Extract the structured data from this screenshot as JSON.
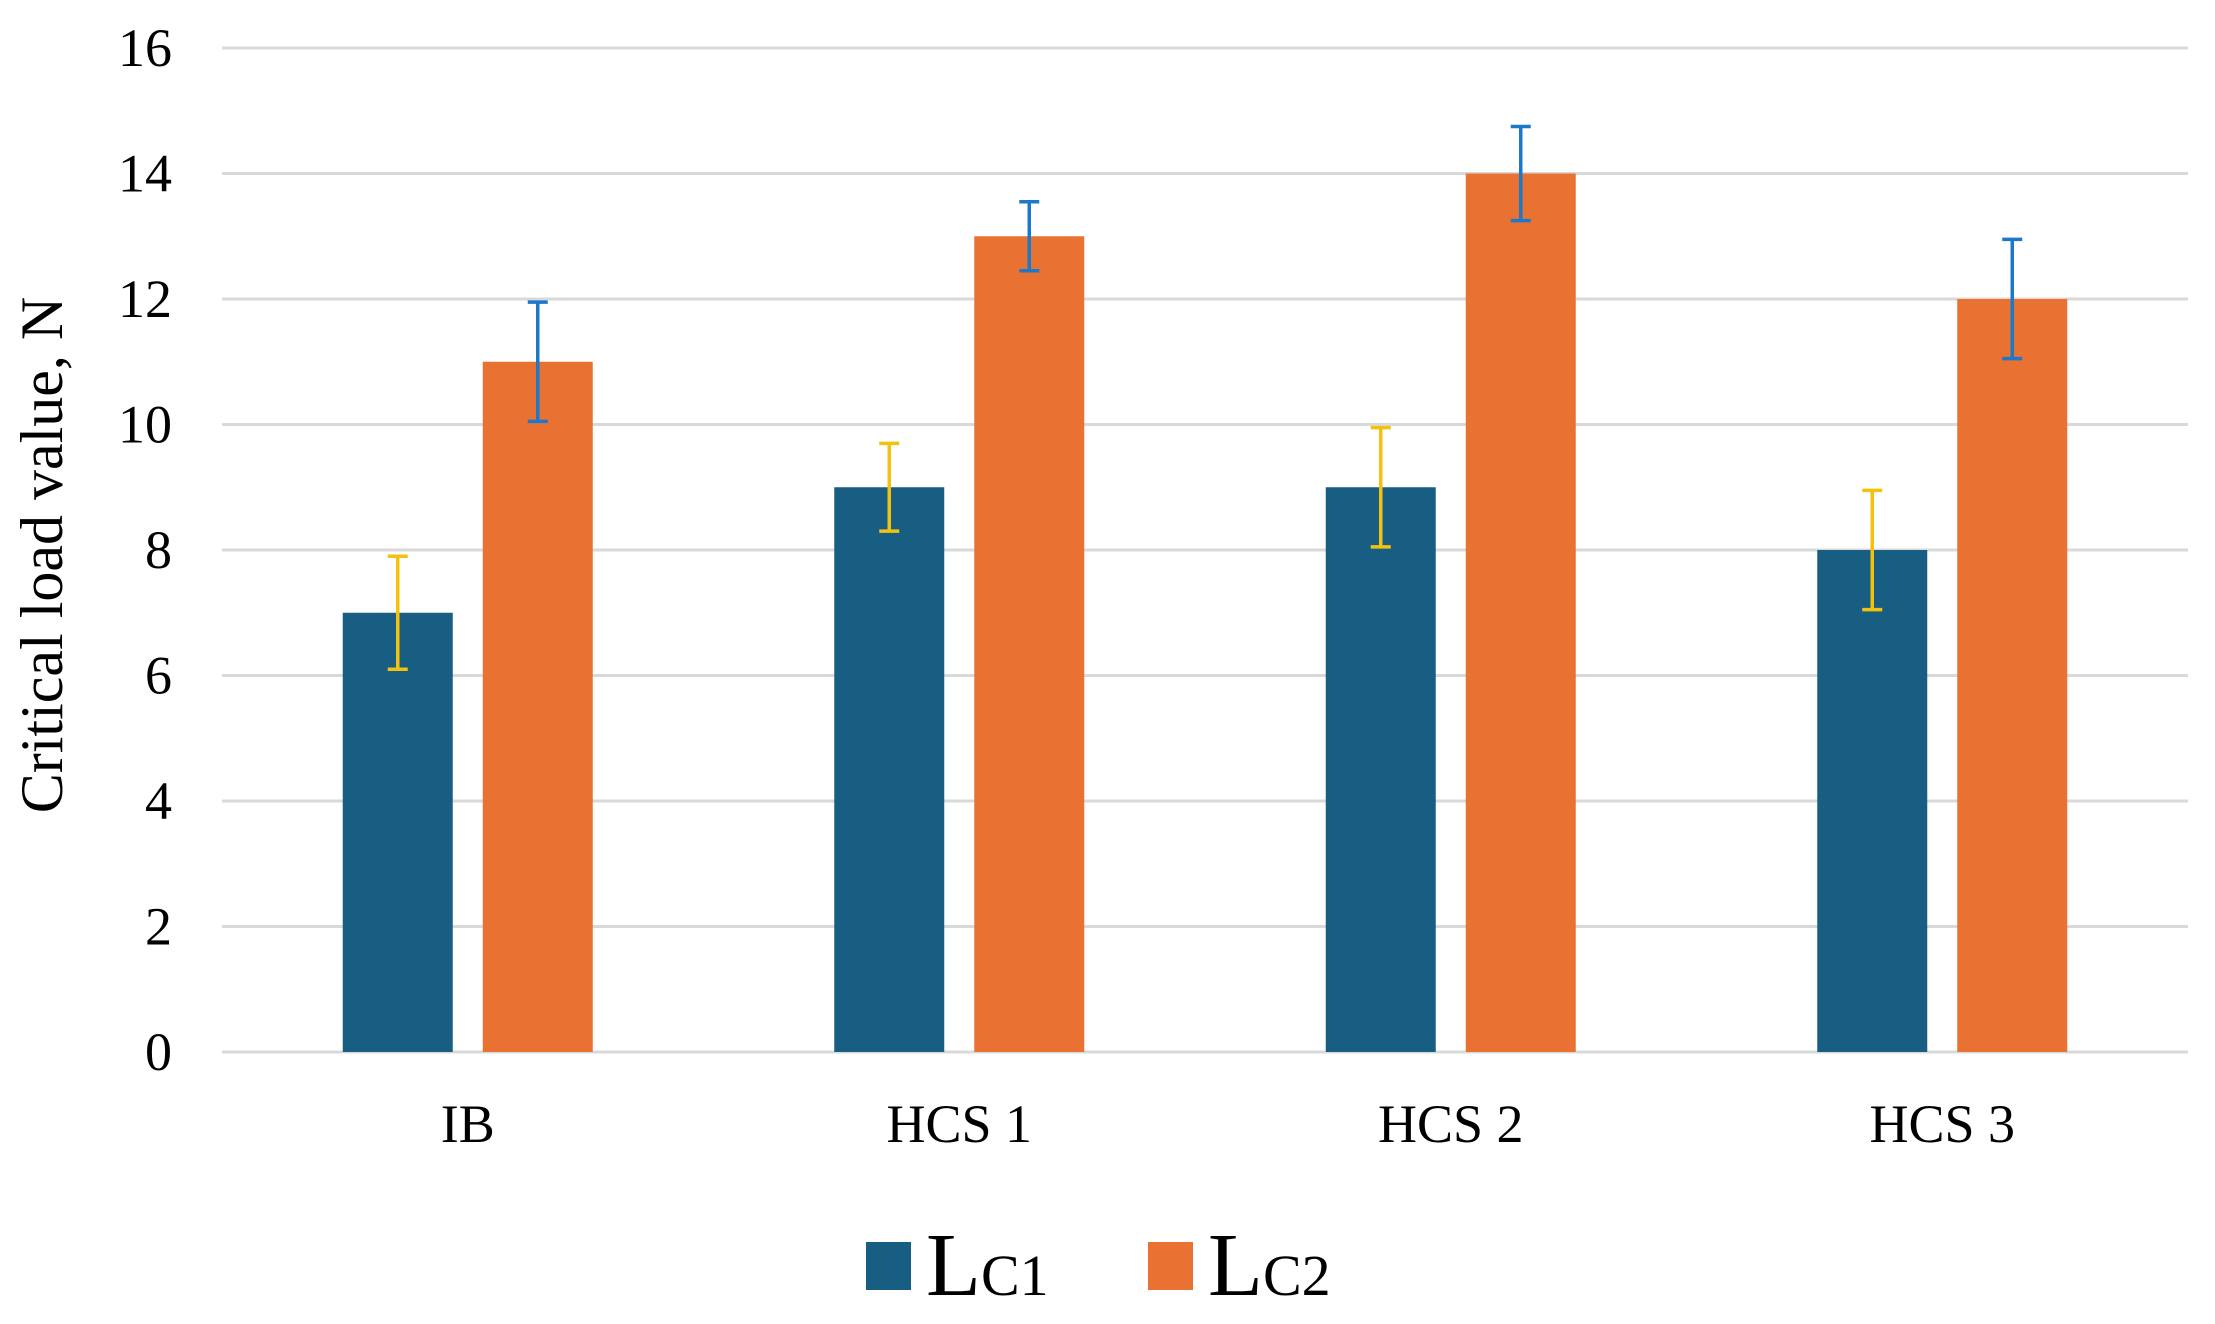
{
  "chart_data": {
    "type": "bar",
    "title": "",
    "xlabel": "",
    "ylabel": "Critical load value, N",
    "ylim": [
      0,
      16
    ],
    "yticks": [
      0,
      2,
      4,
      6,
      8,
      10,
      12,
      14,
      16
    ],
    "grid": true,
    "legend_position": "bottom-center",
    "categories": [
      "IB",
      "HCS 1",
      "HCS 2",
      "HCS 3"
    ],
    "series": [
      {
        "name": "LC1",
        "label_main": "L",
        "label_sub": "C1",
        "color": "#175E82",
        "error_color": "#F2C20F",
        "values": [
          7,
          9,
          9,
          8
        ],
        "errors": [
          0.9,
          0.7,
          0.95,
          0.95
        ]
      },
      {
        "name": "LC2",
        "label_main": "L",
        "label_sub": "C2",
        "color": "#E97132",
        "error_color": "#1C78C9",
        "values": [
          11,
          13,
          14,
          12
        ],
        "errors": [
          0.95,
          0.55,
          0.75,
          0.95
        ]
      }
    ],
    "gridline_color": "#D9D9D9"
  }
}
